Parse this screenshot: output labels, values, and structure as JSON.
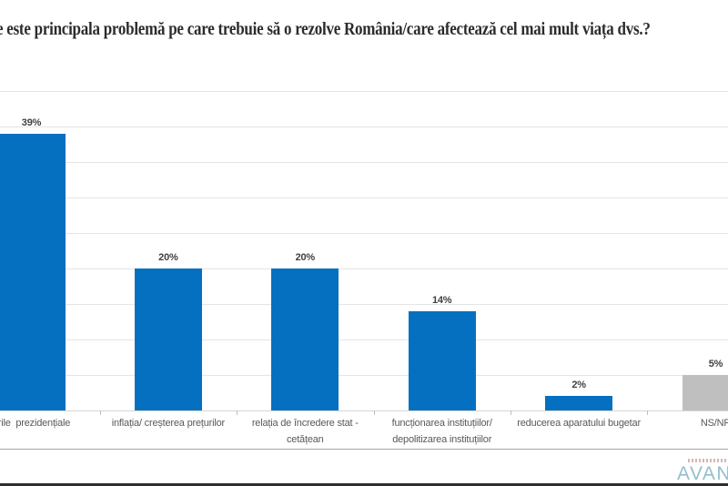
{
  "title": "e este principala problemă pe care trebuie să o rezolve România/care afectează cel mai mult viața dvs.?",
  "chart_data": {
    "type": "bar",
    "title": "e este principala problemă pe care trebuie să o rezolve România/care afectează cel mai mult viața dvs.?",
    "categories": [
      "erile prezidențiale",
      "inflația/ creșterea prețurilor",
      "relația de încredere stat - cetățean",
      "funcționarea instituțiilor/ depolitizarea instituțiilor",
      "reducerea aparatului bugetar",
      "NS/NR"
    ],
    "label_lines": [
      [
        "erile  prezidențiale"
      ],
      [
        "inflația/ creșterea prețurilor"
      ],
      [
        "relația de încredere stat -",
        "cetățean"
      ],
      [
        "funcționarea instituțiilor/",
        "depolitizarea instituțiilor"
      ],
      [
        "reducerea aparatului bugetar"
      ],
      [
        "NS/NR"
      ]
    ],
    "values": [
      39,
      20,
      20,
      14,
      2,
      5
    ],
    "data_labels": [
      "39%",
      "20%",
      "20%",
      "14%",
      "2%",
      "5%"
    ],
    "value_suffix": "%",
    "bar_colors": [
      "#0670c0",
      "#0670c0",
      "#0670c0",
      "#0670c0",
      "#0670c0",
      "#bfbfbf"
    ],
    "xlabel": "",
    "ylabel": "",
    "ylim": [
      0,
      45
    ],
    "gridline_step": 5,
    "grid": true,
    "legend": "none"
  },
  "colors": {
    "bar_blue": "#0670c0",
    "bar_gray": "#bfbfbf",
    "gridline": "#e4e4e4",
    "title_text": "#2b2b2b",
    "category_text": "#595959",
    "data_label_text": "#404040",
    "logo_teal": "#92bfcc"
  },
  "footer": {
    "logo_text": "AVAN"
  }
}
